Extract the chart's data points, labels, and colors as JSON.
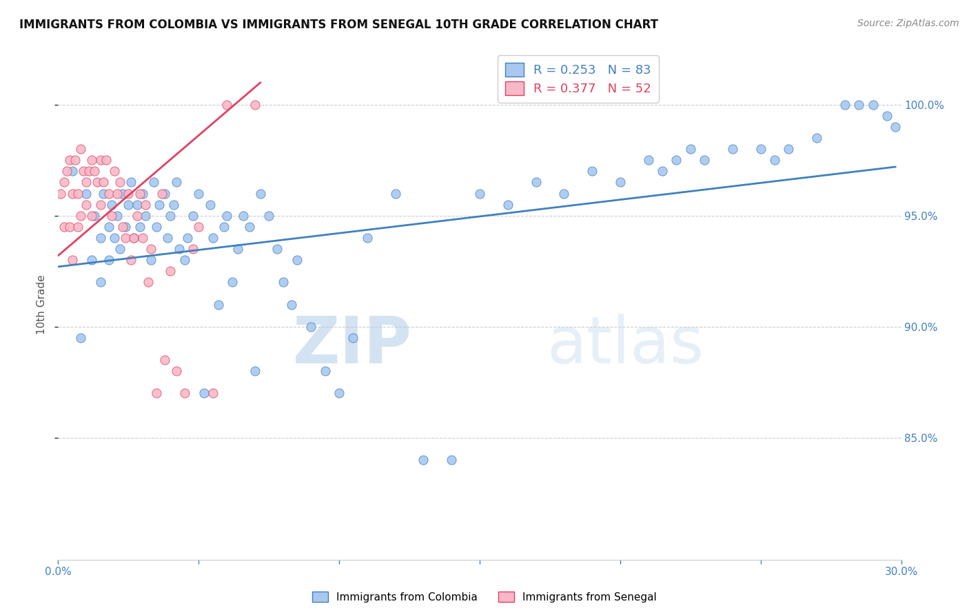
{
  "title": "IMMIGRANTS FROM COLOMBIA VS IMMIGRANTS FROM SENEGAL 10TH GRADE CORRELATION CHART",
  "source": "Source: ZipAtlas.com",
  "ylabel": "10th Grade",
  "xlim": [
    0.0,
    0.3
  ],
  "ylim": [
    0.795,
    1.025
  ],
  "colombia_R": 0.253,
  "colombia_N": 83,
  "senegal_R": 0.377,
  "senegal_N": 52,
  "colombia_color": "#A8C8F0",
  "senegal_color": "#F8B8C8",
  "colombia_line_color": "#4080C0",
  "senegal_line_color": "#E04060",
  "watermark_zip": "ZIP",
  "watermark_atlas": "atlas",
  "colombia_scatter_x": [
    0.005,
    0.008,
    0.01,
    0.012,
    0.013,
    0.015,
    0.015,
    0.016,
    0.018,
    0.018,
    0.019,
    0.02,
    0.021,
    0.022,
    0.023,
    0.024,
    0.025,
    0.026,
    0.027,
    0.028,
    0.029,
    0.03,
    0.031,
    0.033,
    0.034,
    0.035,
    0.036,
    0.038,
    0.039,
    0.04,
    0.041,
    0.042,
    0.043,
    0.045,
    0.046,
    0.048,
    0.05,
    0.052,
    0.054,
    0.055,
    0.057,
    0.059,
    0.06,
    0.062,
    0.064,
    0.066,
    0.068,
    0.07,
    0.072,
    0.075,
    0.078,
    0.08,
    0.083,
    0.085,
    0.09,
    0.095,
    0.1,
    0.105,
    0.11,
    0.12,
    0.13,
    0.14,
    0.15,
    0.16,
    0.17,
    0.18,
    0.19,
    0.2,
    0.21,
    0.215,
    0.22,
    0.225,
    0.23,
    0.24,
    0.25,
    0.255,
    0.26,
    0.27,
    0.28,
    0.285,
    0.29,
    0.295,
    0.298
  ],
  "colombia_scatter_y": [
    0.97,
    0.895,
    0.96,
    0.93,
    0.95,
    0.94,
    0.92,
    0.96,
    0.945,
    0.93,
    0.955,
    0.94,
    0.95,
    0.935,
    0.96,
    0.945,
    0.955,
    0.965,
    0.94,
    0.955,
    0.945,
    0.96,
    0.95,
    0.93,
    0.965,
    0.945,
    0.955,
    0.96,
    0.94,
    0.95,
    0.955,
    0.965,
    0.935,
    0.93,
    0.94,
    0.95,
    0.96,
    0.87,
    0.955,
    0.94,
    0.91,
    0.945,
    0.95,
    0.92,
    0.935,
    0.95,
    0.945,
    0.88,
    0.96,
    0.95,
    0.935,
    0.92,
    0.91,
    0.93,
    0.9,
    0.88,
    0.87,
    0.895,
    0.94,
    0.96,
    0.84,
    0.84,
    0.96,
    0.955,
    0.965,
    0.96,
    0.97,
    0.965,
    0.975,
    0.97,
    0.975,
    0.98,
    0.975,
    0.98,
    0.98,
    0.975,
    0.98,
    0.985,
    1.0,
    1.0,
    1.0,
    0.995,
    0.99
  ],
  "senegal_scatter_x": [
    0.001,
    0.002,
    0.002,
    0.003,
    0.004,
    0.004,
    0.005,
    0.005,
    0.006,
    0.007,
    0.007,
    0.008,
    0.008,
    0.009,
    0.01,
    0.01,
    0.011,
    0.012,
    0.012,
    0.013,
    0.014,
    0.015,
    0.015,
    0.016,
    0.017,
    0.018,
    0.019,
    0.02,
    0.021,
    0.022,
    0.023,
    0.024,
    0.025,
    0.026,
    0.027,
    0.028,
    0.029,
    0.03,
    0.031,
    0.032,
    0.033,
    0.035,
    0.037,
    0.038,
    0.04,
    0.042,
    0.045,
    0.048,
    0.05,
    0.055,
    0.06,
    0.07
  ],
  "senegal_scatter_y": [
    0.96,
    0.965,
    0.945,
    0.97,
    0.975,
    0.945,
    0.96,
    0.93,
    0.975,
    0.96,
    0.945,
    0.98,
    0.95,
    0.97,
    0.965,
    0.955,
    0.97,
    0.975,
    0.95,
    0.97,
    0.965,
    0.975,
    0.955,
    0.965,
    0.975,
    0.96,
    0.95,
    0.97,
    0.96,
    0.965,
    0.945,
    0.94,
    0.96,
    0.93,
    0.94,
    0.95,
    0.96,
    0.94,
    0.955,
    0.92,
    0.935,
    0.87,
    0.96,
    0.885,
    0.925,
    0.88,
    0.87,
    0.935,
    0.945,
    0.87,
    1.0,
    1.0
  ],
  "colombia_trend_x": [
    0.0,
    0.298
  ],
  "colombia_trend_y": [
    0.927,
    0.972
  ],
  "senegal_trend_x": [
    0.0,
    0.072
  ],
  "senegal_trend_y": [
    0.932,
    1.01
  ],
  "grid_color": "#CCCCCC",
  "background_color": "#FFFFFF",
  "title_fontsize": 12,
  "axis_label_fontsize": 11,
  "tick_fontsize": 11,
  "legend_fontsize": 13,
  "source_fontsize": 10,
  "right_tick_color": "#4080C0"
}
